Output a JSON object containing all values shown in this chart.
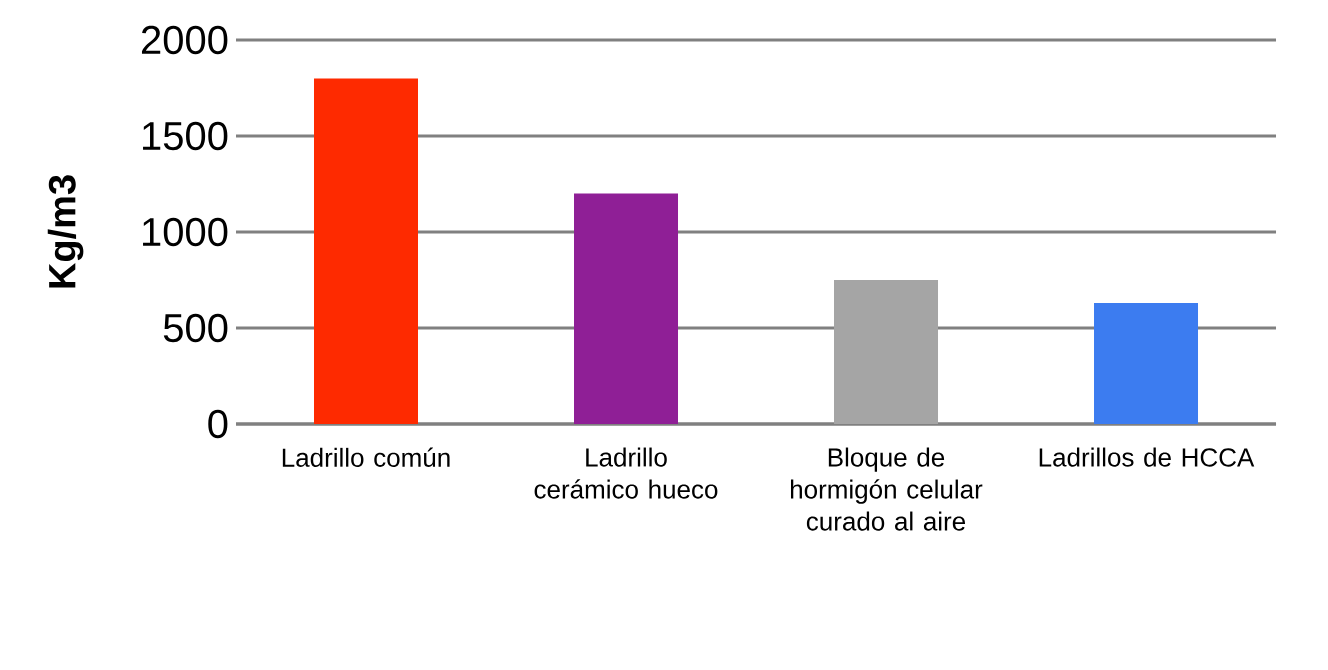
{
  "chart_data": {
    "type": "bar",
    "ylabel": "Kg/m3",
    "categories": [
      "Ladrillo común",
      "Ladrillo cerámico hueco",
      "Bloque de hormigón celular curado al aire",
      "Ladrillos de HCCA"
    ],
    "values": [
      1800,
      1200,
      750,
      630
    ],
    "colors": [
      "#fe2a00",
      "#8f1f96",
      "#a5a5a5",
      "#3c7cf0"
    ],
    "ylim": [
      0,
      2000
    ],
    "yticks": [
      0,
      500,
      1000,
      1500,
      2000
    ],
    "grid": "y"
  }
}
